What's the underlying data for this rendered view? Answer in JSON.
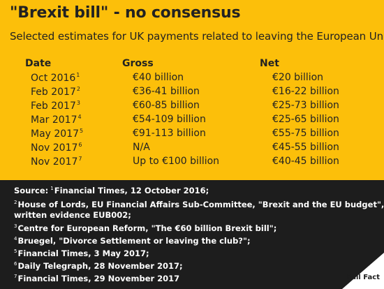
{
  "title": "\"Brexit bill\" - no consensus",
  "subtitle": "Selected estimates for UK payments related to leaving the European Union",
  "columns": {
    "date": "Date",
    "gross": "Gross",
    "net": "Net"
  },
  "rows": [
    {
      "date": "Oct 2016",
      "ref": "1",
      "gross": "€40 billion",
      "net": "€20 billion"
    },
    {
      "date": "Feb 2017",
      "ref": "2",
      "gross": "€36-41 billion",
      "net": "€16-22 billion"
    },
    {
      "date": "Feb 2017",
      "ref": "3",
      "gross": "€60-85 billion",
      "net": "€25-73 billion"
    },
    {
      "date": "Mar 2017",
      "ref": "4",
      "gross": "€54-109 billion",
      "net": "€25-65 billion"
    },
    {
      "date": "May 2017",
      "ref": "5",
      "gross": "€91-113 billion",
      "net": "€55-75 billion"
    },
    {
      "date": "Nov 2017",
      "ref": "6",
      "gross": "N/A",
      "net": "€45-55 billion"
    },
    {
      "date": "Nov 2017",
      "ref": "7",
      "gross": "Up to €100 billion",
      "net": "€40-45 billion"
    }
  ],
  "sources": {
    "label": "Source:",
    "lines": [
      {
        "num": "1",
        "text": "Financial Times, 12 October 2016;"
      },
      {
        "num": "2",
        "text": "House of Lords, EU Financial Affairs Sub-Committee, \"Brexit and the EU budget\","
      },
      {
        "num": "",
        "text": "written evidence EUB002;"
      },
      {
        "num": "3",
        "text": "Centre for European Reform, \"The €60 billion Brexit bill\";"
      },
      {
        "num": "4",
        "text": "Bruegel, \"Divorce Settlement or leaving the club?\";"
      },
      {
        "num": "5",
        "text": "Financial Times, 3 May 2017;"
      },
      {
        "num": "6",
        "text": "Daily Telegraph, 28 November 2017;"
      },
      {
        "num": "7",
        "text": "Financial Times, 29 November 2017"
      }
    ]
  },
  "logo": {
    "text": "Full Fact"
  },
  "colors": {
    "background": "#fcbf0a",
    "footer": "#1d1d1d",
    "text": "#222222",
    "footer_text": "#ffffff"
  }
}
